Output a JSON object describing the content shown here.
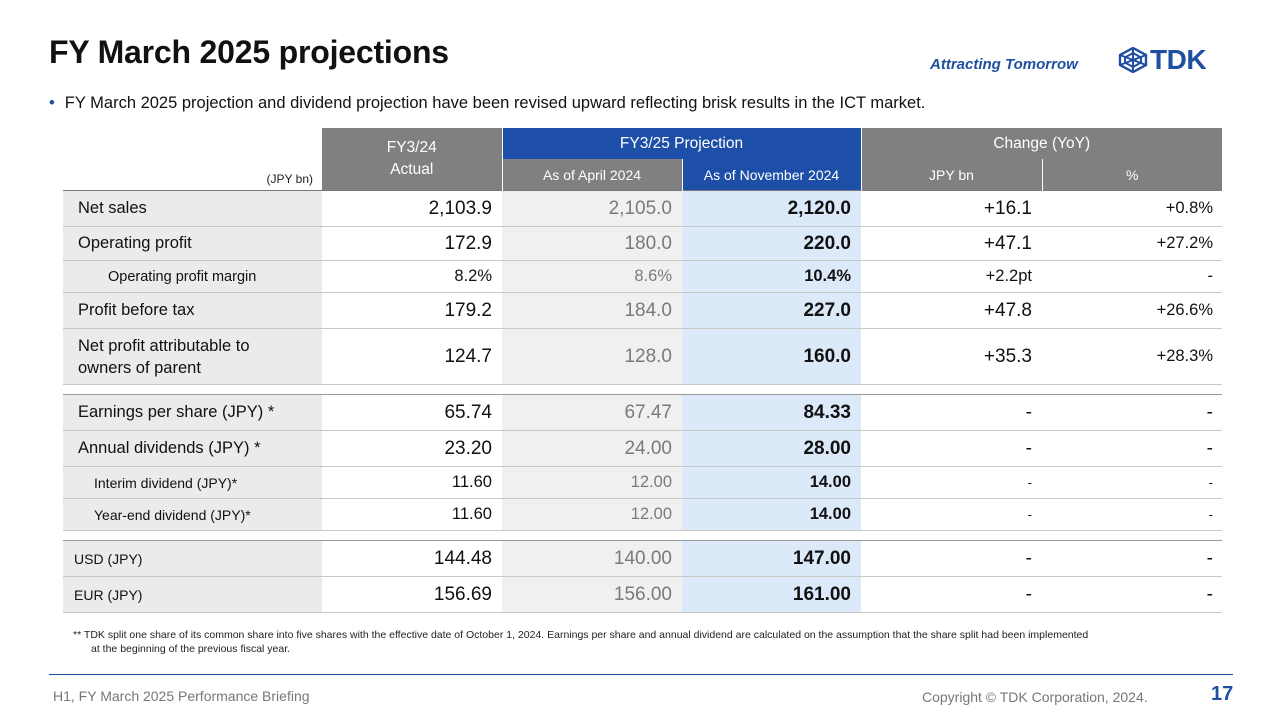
{
  "slide": {
    "title": "FY March 2025 projections",
    "brand_tagline": "Attracting Tomorrow",
    "logo_text": "TDK",
    "bullet": "FY March 2025 projection and dividend projection have been revised upward reflecting brisk results in the ICT market."
  },
  "table": {
    "unit": "(JPY bn)",
    "col_fy24": "FY3/24\nActual",
    "col_fy24_line1": "FY3/24",
    "col_fy24_line2": "Actual",
    "col_projection": "FY3/25 Projection",
    "col_change": "Change (YoY)",
    "sub_april": "As of April 2024",
    "sub_november": "As of November 2024",
    "sub_jpybn": "JPY bn",
    "sub_pct": "%",
    "rows": [
      {
        "label": "Net sales",
        "fy24": "2,103.9",
        "apr": "2,105.0",
        "nov": "2,120.0",
        "chg": "+16.1",
        "pct": "+0.8%"
      },
      {
        "label": "Operating profit",
        "fy24": "172.9",
        "apr": "180.0",
        "nov": "220.0",
        "chg": "+47.1",
        "pct": "+27.2%"
      },
      {
        "label": "Operating profit margin",
        "fy24": "8.2%",
        "apr": "8.6%",
        "nov": "10.4%",
        "chg": "+2.2pt",
        "pct": "-"
      },
      {
        "label": "Profit before tax",
        "fy24": "179.2",
        "apr": "184.0",
        "nov": "227.0",
        "chg": "+47.8",
        "pct": "+26.6%"
      },
      {
        "label_line1": "Net profit attributable to",
        "label_line2": "owners of parent",
        "fy24": "124.7",
        "apr": "128.0",
        "nov": "160.0",
        "chg": "+35.3",
        "pct": "+28.3%"
      },
      {
        "label": "Earnings per share (JPY) *",
        "fy24": "65.74",
        "apr": "67.47",
        "nov": "84.33",
        "chg": "-",
        "pct": "-"
      },
      {
        "label": "Annual dividends (JPY) *",
        "fy24": "23.20",
        "apr": "24.00",
        "nov": "28.00",
        "chg": "-",
        "pct": "-"
      },
      {
        "label": "Interim dividend (JPY)*",
        "fy24": "11.60",
        "apr": "12.00",
        "nov": "14.00",
        "chg": "-",
        "pct": "-"
      },
      {
        "label": "Year-end dividend (JPY)*",
        "fy24": "11.60",
        "apr": "12.00",
        "nov": "14.00",
        "chg": "-",
        "pct": "-"
      },
      {
        "label": "USD (JPY)",
        "fy24": "144.48",
        "apr": "140.00",
        "nov": "147.00",
        "chg": "-",
        "pct": "-"
      },
      {
        "label": "EUR (JPY)",
        "fy24": "156.69",
        "apr": "156.00",
        "nov": "161.00",
        "chg": "-",
        "pct": "-"
      }
    ]
  },
  "footnote": {
    "line1": "** TDK split one share of its common share into five shares with the effective date of October 1, 2024. Earnings per share and annual dividend are calculated on the assumption that the share split had been implemented",
    "line2": "at the beginning of the previous fiscal year."
  },
  "footer": {
    "left": "H1, FY March 2025 Performance Briefing",
    "copyright": "Copyright  © TDK Corporation, 2024.",
    "page": "17"
  },
  "colors": {
    "accent_blue": "#1d4fa8",
    "header_gray": "#808080",
    "highlight_column": "#dbe9f9"
  }
}
